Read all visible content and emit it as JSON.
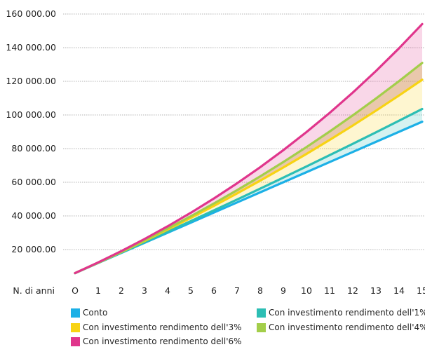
{
  "chart_data": {
    "type": "line",
    "xlabel": "N. di anni",
    "ylabel": "",
    "x": [
      0,
      1,
      2,
      3,
      4,
      5,
      6,
      7,
      8,
      9,
      10,
      11,
      12,
      13,
      14,
      15
    ],
    "x_tick_labels": [
      "O",
      "1",
      "2",
      "3",
      "4",
      "5",
      "6",
      "7",
      "8",
      "9",
      "10",
      "11",
      "12",
      "13",
      "14",
      "15"
    ],
    "ylim": [
      0,
      160000
    ],
    "y_ticks": [
      20000,
      40000,
      60000,
      80000,
      100000,
      120000,
      140000,
      160000
    ],
    "y_tick_labels": [
      "20 000.00",
      "40 000.00",
      "60 000.00",
      "80 000.00",
      "100 000.00",
      "120 000.00",
      "140 000.00",
      "160 000.00"
    ],
    "grid": true,
    "legend_position": "bottom",
    "series": [
      {
        "name": "Conto",
        "color": "#1CB0E6",
        "values": [
          6000,
          12000,
          18000,
          24000,
          30000,
          36000,
          42000,
          48000,
          54000,
          60000,
          66000,
          72000,
          78000,
          84000,
          90000,
          96000
        ]
      },
      {
        "name": "Con investimento rendimento dell'1%",
        "color": "#2CBEB4",
        "values": [
          6000,
          12060,
          18181,
          24363,
          30606,
          36912,
          43281,
          49714,
          56211,
          62773,
          69401,
          76095,
          82856,
          89685,
          96581,
          103547
        ]
      },
      {
        "name": "Con investimento rendimento dell'3%",
        "color": "#F8D313",
        "values": [
          6000,
          12180,
          18545,
          25102,
          31855,
          38810,
          45975,
          53354,
          60955,
          68783,
          76847,
          85152,
          93707,
          102518,
          111593,
          120941
        ]
      },
      {
        "name": "Con investimento rendimento dell'4%",
        "color": "#A3CE4A",
        "values": [
          6000,
          12240,
          18730,
          25479,
          32498,
          39798,
          47390,
          55286,
          63497,
          72037,
          80918,
          90155,
          99761,
          109751,
          120141,
          130947
        ]
      },
      {
        "name": "Con investimento rendimento dell'6%",
        "color": "#E0358C",
        "values": [
          6000,
          12360,
          19102,
          26248,
          33823,
          41852,
          50363,
          59385,
          68948,
          79085,
          89830,
          101220,
          113293,
          126091,
          139656,
          154035
        ]
      }
    ]
  },
  "legend": [
    {
      "label": "Conto",
      "color": "#1CB0E6"
    },
    {
      "label": "Con investimento rendimento dell'1%",
      "color": "#2CBEB4"
    },
    {
      "label": "Con investimento rendimento dell'3%",
      "color": "#F8D313"
    },
    {
      "label": "Con investimento rendimento dell'4%",
      "color": "#A3CE4A"
    },
    {
      "label": "Con investimento rendimento dell'6%",
      "color": "#E0358C"
    }
  ]
}
